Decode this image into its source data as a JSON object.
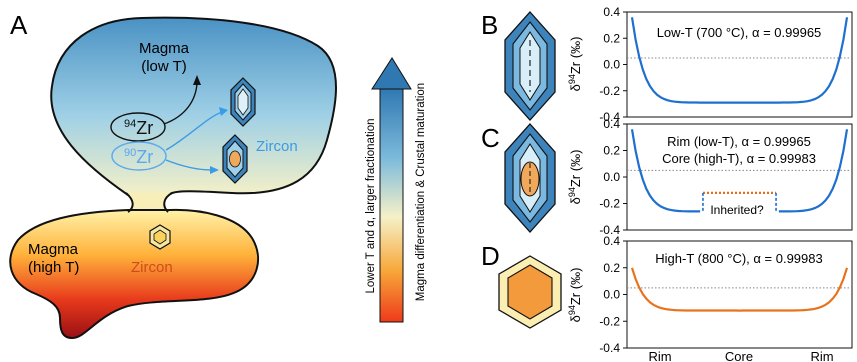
{
  "panel_labels": {
    "a": "A",
    "b": "B",
    "c": "C",
    "d": "D"
  },
  "panel_a": {
    "upper_magma": {
      "line1": "Magma",
      "line2": "(low T)"
    },
    "lower_magma": {
      "line1": "Magma",
      "line2": "(high T)"
    },
    "isotope_heavy": {
      "mass": "94",
      "element": "Zr"
    },
    "isotope_light": {
      "mass": "90",
      "element": "Zr"
    },
    "zircon_upper": "Zircon",
    "zircon_lower": "Zircon",
    "arrow_label_1": "Lower T and α, larger fractionation",
    "arrow_label_2": "Magma differentiation & Crustal maturation"
  },
  "y_axis": {
    "prefix": "δ",
    "sup": "94",
    "suffix": "Zr (‰)"
  },
  "x_ticks": [
    "Rim",
    "Core",
    "Rim"
  ],
  "colors": {
    "blue_curve": "#1f6fd0",
    "orange_curve": "#e8731c",
    "inherited": "#e07020"
  },
  "chart_data": [
    {
      "type": "line",
      "panel": "B",
      "title": "Low-T (700 °C), α = 0.99965",
      "x_ticks": [
        "Rim",
        "Core",
        "Rim"
      ],
      "ylim": [
        -0.4,
        0.4
      ],
      "yticks": [
        "0.4",
        "0.2",
        "0.0",
        "-0.2",
        "-0.4"
      ],
      "reference_line": 0.05,
      "series": [
        {
          "color": "#1f6fd0",
          "rim_value": 0.36,
          "core_value": -0.29
        }
      ]
    },
    {
      "type": "line",
      "panel": "C",
      "title": "Rim (low-T), α = 0.99965",
      "subtitle": "Core (high-T), α = 0.99983",
      "x_ticks": [
        "Rim",
        "Core",
        "Rim"
      ],
      "ylim": [
        -0.4,
        0.4
      ],
      "yticks": [
        "0.4",
        "0.2",
        "0.0",
        "-0.2",
        "-0.4"
      ],
      "reference_line": 0.05,
      "annotation": "Inherited?",
      "series": [
        {
          "color": "#1f6fd0",
          "rim_value": 0.36,
          "core_value": -0.26
        },
        {
          "color": "#e07020",
          "dotted": true,
          "value": -0.12,
          "x_range": [
            0.33,
            0.67
          ]
        }
      ]
    },
    {
      "type": "line",
      "panel": "D",
      "title": "High-T (800 °C), α = 0.99983",
      "x_ticks": [
        "Rim",
        "Core",
        "Rim"
      ],
      "ylim": [
        -0.4,
        0.4
      ],
      "yticks": [
        "0.4",
        "0.2",
        "0.0",
        "-0.2",
        "-0.4"
      ],
      "reference_line": 0.05,
      "series": [
        {
          "color": "#e8731c",
          "rim_value": 0.2,
          "core_value": -0.12
        }
      ]
    }
  ]
}
